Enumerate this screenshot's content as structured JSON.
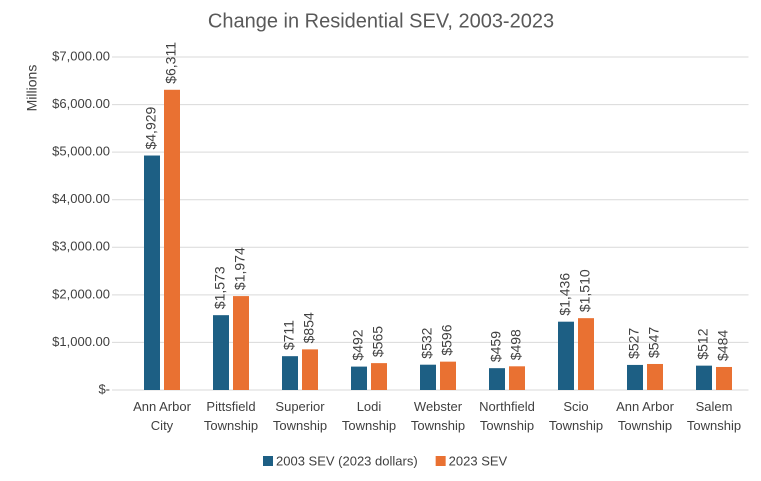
{
  "chart_data": {
    "type": "grouped_bar",
    "title": "Change in Residential SEV, 2003-2023",
    "y_label": "Millions",
    "categories": [
      "Ann Arbor City",
      "Pittsfield Township",
      "Superior Township",
      "Lodi Township",
      "Webster Township",
      "Northfield Township",
      "Scio Township",
      "Ann Arbor Township",
      "Salem Township"
    ],
    "series": [
      {
        "name": "2003 SEV (2023 dollars)",
        "color": "#1d5f84",
        "values": [
          4929,
          1573,
          711,
          492,
          532,
          459,
          1436,
          527,
          512
        ],
        "value_labels": [
          "$4,929",
          "$1,573",
          "$711",
          "$492",
          "$532",
          "$459",
          "$1,436",
          "$527",
          "$512"
        ]
      },
      {
        "name": "2023 SEV",
        "color": "#e97132",
        "values": [
          6311,
          1974,
          854,
          565,
          596,
          498,
          1510,
          547,
          484
        ],
        "value_labels": [
          "$6,311",
          "$1,974",
          "$854",
          "$565",
          "$596",
          "$498",
          "$1,510",
          "$547",
          "$484"
        ]
      }
    ],
    "ylim": [
      0,
      7000
    ],
    "yticks": [
      {
        "value": 0,
        "label": "$-"
      },
      {
        "value": 1000,
        "label": "$1,000.00"
      },
      {
        "value": 2000,
        "label": "$2,000.00"
      },
      {
        "value": 3000,
        "label": "$3,000.00"
      },
      {
        "value": 4000,
        "label": "$4,000.00"
      },
      {
        "value": 5000,
        "label": "$5,000.00"
      },
      {
        "value": 6000,
        "label": "$6,000.00"
      },
      {
        "value": 7000,
        "label": "$7,000.00"
      }
    ],
    "grid": true,
    "legend": "bottom"
  }
}
